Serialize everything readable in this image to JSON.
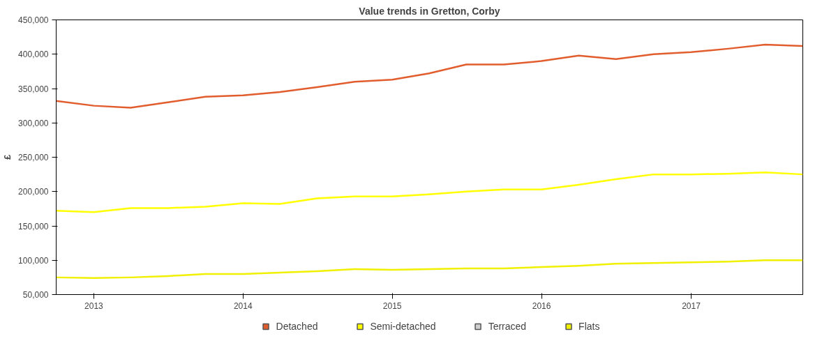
{
  "chart_data": {
    "type": "line",
    "title": "Value trends in Gretton, Corby",
    "ylabel": "£",
    "x": [
      "2012-10",
      "2013-01",
      "2013-04",
      "2013-07",
      "2013-10",
      "2014-01",
      "2014-04",
      "2014-07",
      "2014-10",
      "2015-01",
      "2015-04",
      "2015-07",
      "2015-10",
      "2016-01",
      "2016-04",
      "2016-07",
      "2016-10",
      "2017-01",
      "2017-04",
      "2017-07",
      "2017-10"
    ],
    "series": [
      {
        "name": "Detached",
        "color": "#e25d2e",
        "values": [
          332000,
          325000,
          322000,
          330000,
          338000,
          340000,
          345000,
          352000,
          360000,
          363000,
          372000,
          385000,
          385000,
          390000,
          398000,
          393000,
          400000,
          403000,
          408000,
          414000,
          412000
        ]
      },
      {
        "name": "Semi-detached",
        "color": "#ffff00",
        "values": [
          172000,
          170000,
          176000,
          176000,
          178000,
          183000,
          182000,
          190000,
          193000,
          193000,
          196000,
          200000,
          203000,
          203000,
          210000,
          218000,
          225000,
          225000,
          226000,
          228000,
          225000
        ]
      },
      {
        "name": "Terraced",
        "color": "#d0d0d0",
        "values": [
          null,
          null,
          null,
          null,
          null,
          null,
          null,
          null,
          null,
          null,
          null,
          null,
          null,
          null,
          null,
          null,
          null,
          null,
          null,
          null,
          null
        ]
      },
      {
        "name": "Flats",
        "color": "#f0f000",
        "values": [
          75000,
          74000,
          75000,
          77000,
          80000,
          80000,
          82000,
          84000,
          87000,
          86000,
          87000,
          88000,
          88000,
          90000,
          92000,
          95000,
          96000,
          97000,
          98000,
          100000,
          100000
        ]
      }
    ],
    "xlim": [
      "2012-10",
      "2017-10"
    ],
    "xticks": [
      "2013",
      "2014",
      "2015",
      "2016",
      "2017"
    ],
    "ylim": [
      50000,
      450000
    ],
    "yticks": [
      {
        "value": 50000,
        "label": "50,000"
      },
      {
        "value": 100000,
        "label": "100,000"
      },
      {
        "value": 150000,
        "label": "150,000"
      },
      {
        "value": 200000,
        "label": "200,000"
      },
      {
        "value": 250000,
        "label": "250,000"
      },
      {
        "value": 300000,
        "label": "300,000"
      },
      {
        "value": 350000,
        "label": "350,000"
      },
      {
        "value": 400000,
        "label": "400,000"
      },
      {
        "value": 450000,
        "label": "450,000"
      }
    ],
    "grid": false,
    "legend": "bottom",
    "marker": "none",
    "line_style": "solid"
  }
}
